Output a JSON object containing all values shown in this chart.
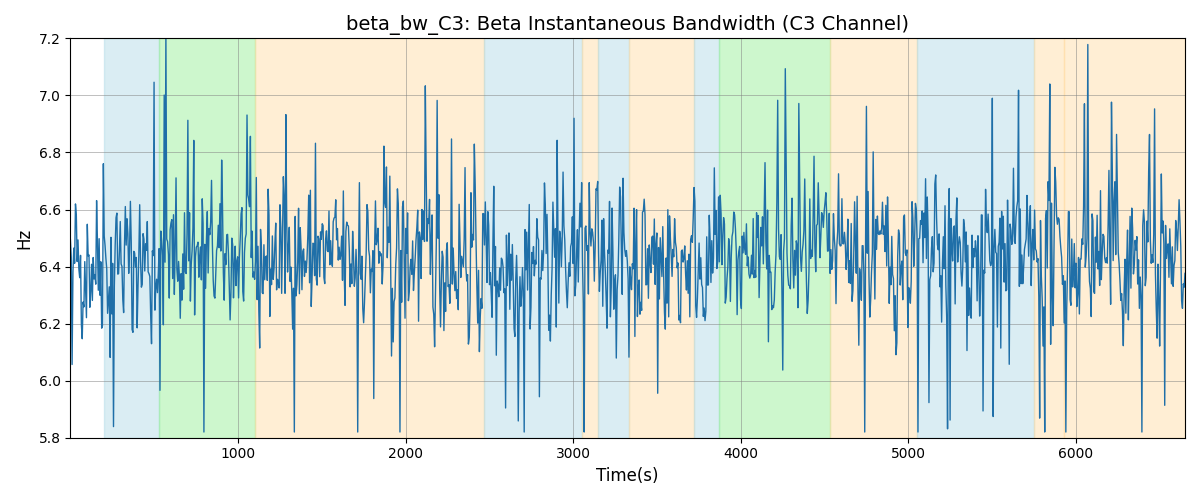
{
  "title": "beta_bw_C3: Beta Instantaneous Bandwidth (C3 Channel)",
  "xlabel": "Time(s)",
  "ylabel": "Hz",
  "ylim": [
    5.8,
    7.2
  ],
  "xlim": [
    0,
    6650
  ],
  "bg_regions": [
    {
      "xmin": 200,
      "xmax": 530,
      "color": "#add8e6",
      "alpha": 0.45
    },
    {
      "xmin": 530,
      "xmax": 1100,
      "color": "#90ee90",
      "alpha": 0.45
    },
    {
      "xmin": 1100,
      "xmax": 2470,
      "color": "#ffdaa0",
      "alpha": 0.45
    },
    {
      "xmin": 2470,
      "xmax": 3050,
      "color": "#add8e6",
      "alpha": 0.45
    },
    {
      "xmin": 3050,
      "xmax": 3150,
      "color": "#ffdaa0",
      "alpha": 0.45
    },
    {
      "xmin": 3150,
      "xmax": 3330,
      "color": "#add8e6",
      "alpha": 0.45
    },
    {
      "xmin": 3330,
      "xmax": 3720,
      "color": "#ffdaa0",
      "alpha": 0.45
    },
    {
      "xmin": 3720,
      "xmax": 3870,
      "color": "#add8e6",
      "alpha": 0.45
    },
    {
      "xmin": 3870,
      "xmax": 4530,
      "color": "#90ee90",
      "alpha": 0.45
    },
    {
      "xmin": 4530,
      "xmax": 5050,
      "color": "#ffdaa0",
      "alpha": 0.45
    },
    {
      "xmin": 5050,
      "xmax": 5750,
      "color": "#add8e6",
      "alpha": 0.45
    },
    {
      "xmin": 5750,
      "xmax": 5930,
      "color": "#ffdaa0",
      "alpha": 0.45
    },
    {
      "xmin": 5930,
      "xmax": 6650,
      "color": "#ffdaa0",
      "alpha": 0.45
    }
  ],
  "line_color": "#1f6fa8",
  "line_width": 1.0,
  "seed": 42,
  "n_points": 1320,
  "mean": 6.43,
  "std": 0.13,
  "grid": true,
  "title_fontsize": 14,
  "label_fontsize": 12,
  "xticks": [
    1000,
    2000,
    3000,
    4000,
    5000,
    6000
  ],
  "yticks": [
    5.8,
    6.0,
    6.2,
    6.4,
    6.6,
    6.8,
    7.0,
    7.2
  ]
}
